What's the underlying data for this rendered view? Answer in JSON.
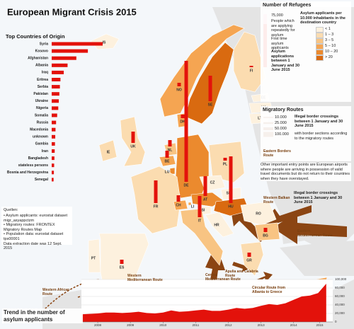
{
  "title": "European Migrant Crisis 2015",
  "origin": {
    "title": "Top Countries of Origin",
    "color": "#e3120b",
    "categories": [
      "Syria",
      "Kosovo",
      "Afghanistan",
      "Albania",
      "Iraq",
      "Eritrea",
      "Serbia",
      "Pakistan",
      "Ukraine",
      "Nigeria",
      "Somalia",
      "Russia",
      "Macedonia",
      "unknown",
      "Gambia",
      "Iran",
      "Bangladesh",
      "stateless persons",
      "Bosnia and Herzegovina",
      "Senegal"
    ],
    "values": [
      93000,
      66000,
      45000,
      29000,
      22000,
      16000,
      15000,
      14000,
      13000,
      12000,
      10000,
      8000,
      7000,
      6500,
      6000,
      5500,
      5000,
      4500,
      4000,
      3500
    ]
  },
  "countries": [
    {
      "code": "IS",
      "color": "#fdf1de",
      "refugees": null
    },
    {
      "code": "NO",
      "color": "#f5a552",
      "refugees": 5000
    },
    {
      "code": "SE",
      "color": "#d96a10",
      "refugees": 36000
    },
    {
      "code": "FI",
      "color": "#fbdcb0",
      "refugees": 2000
    },
    {
      "code": "EE",
      "color": "#fdf1de",
      "refugees": null
    },
    {
      "code": "LV",
      "color": "#fdf1de",
      "refugees": null
    },
    {
      "code": "LT",
      "color": "#fdf1de",
      "refugees": null
    },
    {
      "code": "DK",
      "color": "#f5a552",
      "refugees": 5000
    },
    {
      "code": "IE",
      "color": "#fbdcb0",
      "refugees": null
    },
    {
      "code": "UK",
      "color": "#fbdcb0",
      "refugees": 16000
    },
    {
      "code": "NL",
      "color": "#f8c483",
      "refugees": 9000
    },
    {
      "code": "BE",
      "color": "#f5a552",
      "refugees": 10000
    },
    {
      "code": "LU",
      "color": "#eb8a2e",
      "refugees": null
    },
    {
      "code": "DE",
      "color": "#eb8a2e",
      "refugees": 171000
    },
    {
      "code": "PL",
      "color": "#fbdcb0",
      "refugees": 4000
    },
    {
      "code": "CZ",
      "color": "#fdf1de",
      "refugees": null
    },
    {
      "code": "SK",
      "color": "#fdf1de",
      "refugees": null
    },
    {
      "code": "AT",
      "color": "#eb8a2e",
      "refugees": 28000
    },
    {
      "code": "HU",
      "color": "#d96a10",
      "refugees": 66000
    },
    {
      "code": "FR",
      "color": "#fbdcb0",
      "refugees": 32000
    },
    {
      "code": "CH",
      "color": "#f5a552",
      "refugees": 9000
    },
    {
      "code": "LI",
      "color": "#f5a552",
      "refugees": null
    },
    {
      "code": "SI",
      "color": "#fdf1de",
      "refugees": null
    },
    {
      "code": "HR",
      "color": "#fdf1de",
      "refugees": null
    },
    {
      "code": "IT",
      "color": "#f8c483",
      "refugees": 30000
    },
    {
      "code": "PT",
      "color": "#fdf1de",
      "refugees": null
    },
    {
      "code": "ES",
      "color": "#fdf1de",
      "refugees": 6000
    },
    {
      "code": "RO",
      "color": "#fdf1de",
      "refugees": null
    },
    {
      "code": "BG",
      "color": "#f8c483",
      "refugees": 6000
    },
    {
      "code": "GR",
      "color": "#fbdcb0",
      "refugees": 6000
    },
    {
      "code": "MT",
      "color": "#eb8a2e",
      "refugees": null
    },
    {
      "code": "CY",
      "color": "#f5a552",
      "refugees": null
    }
  ],
  "legend": {
    "title": "Number of Refugees",
    "scale_value": 75000,
    "scale_label": "75,000",
    "repeat": "People which are applying repeatedly for asylum",
    "repeat_color": "#f29bb0",
    "first": "First time asylum applicants",
    "first_color": "#e3120b",
    "period": "Asylum applications between 1 January and 30 June 2015",
    "rate_title": "Asylum applicants per 10.000 inhabitants in the destination country",
    "classes": [
      {
        "label": "< 1",
        "color": "#fdf1de"
      },
      {
        "label": "1 – 3",
        "color": "#fbdcb0"
      },
      {
        "label": "3 – 5",
        "color": "#f8c483"
      },
      {
        "label": "5 – 10",
        "color": "#f5a552"
      },
      {
        "label": "10 – 20",
        "color": "#eb8a2e"
      },
      {
        "label": "> 20",
        "color": "#d96a10"
      }
    ]
  },
  "routes": {
    "title": "Migratory Routes",
    "crossings": "Illegal border crossings between 1 January and 30 June 2015",
    "widths": [
      {
        "value": 10000,
        "label": "10.000"
      },
      {
        "value": 25000,
        "label": "25.000"
      },
      {
        "value": 50000,
        "label": "50.000"
      },
      {
        "value": 100000,
        "label": "100.000"
      }
    ],
    "sections": "with border sections according to the migratory routes",
    "note": "Other important entry points are European airports where people are arriving in possession of valid travel documents but do not return to their countries when they have overstayed.",
    "map_note": "Illegal border crossings between 1 January and 30 June 2015",
    "names": [
      "Eastern Borders Route",
      "Western Balkan Route",
      "Eastern Mediterranean Route",
      "Circular Route from Albania to Greece",
      "Apulia and Calabria Route",
      "Central Mediterranean Route",
      "Western Mediterranean Route",
      "Western African Route"
    ]
  },
  "sources": {
    "title": "Quellen:",
    "items": [
      "• Asylum applicants: eurostat dataset migr_asyappctzm",
      "• Migratory routes: FRONTEX Migratory Routes Map",
      "• Population data: eurostat dataset tps00001"
    ],
    "date": "Data extraction date was 12 Sept. 2015"
  },
  "trend": {
    "title": "Trend in the number of asylum applicants",
    "color": "#e3120b",
    "x": [
      2008.0,
      2008.25,
      2008.5,
      2008.75,
      2009.0,
      2009.25,
      2009.5,
      2009.75,
      2010.0,
      2010.25,
      2010.5,
      2010.75,
      2011.0,
      2011.25,
      2011.5,
      2011.75,
      2012.0,
      2012.25,
      2012.5,
      2012.75,
      2013.0,
      2013.25,
      2013.5,
      2013.75,
      2014.0,
      2014.25,
      2014.5,
      2014.75,
      2015.0,
      2015.25,
      2015.5
    ],
    "values": [
      18000,
      19000,
      20000,
      22000,
      22000,
      21000,
      22000,
      24000,
      21000,
      20000,
      22000,
      27000,
      24000,
      25000,
      27000,
      29000,
      26000,
      26000,
      29000,
      33000,
      31000,
      33000,
      38000,
      42000,
      40000,
      44000,
      52000,
      60000,
      62000,
      68000,
      90000
    ],
    "xlim": [
      2008.0,
      2015.7
    ],
    "ylim": [
      0,
      100000
    ],
    "xticks": [
      {
        "value": 2008.5,
        "label": "2008"
      },
      {
        "value": 2009.5,
        "label": "2009"
      },
      {
        "value": 2010.5,
        "label": "2010"
      },
      {
        "value": 2011.5,
        "label": "2011"
      },
      {
        "value": 2012.5,
        "label": "2012"
      },
      {
        "value": 2013.5,
        "label": "2013"
      },
      {
        "value": 2014.5,
        "label": "2014"
      },
      {
        "value": 2015.3,
        "label": "2015"
      }
    ],
    "yticks": [
      0,
      {
        "value": 20000,
        "label": "20,000"
      },
      {
        "value": 40000,
        "label": "40,000"
      },
      {
        "value": 60000,
        "label": "60,000"
      },
      {
        "value": 80000,
        "label": "80,000"
      },
      {
        "value": 100000,
        "label": "100,000"
      }
    ]
  }
}
